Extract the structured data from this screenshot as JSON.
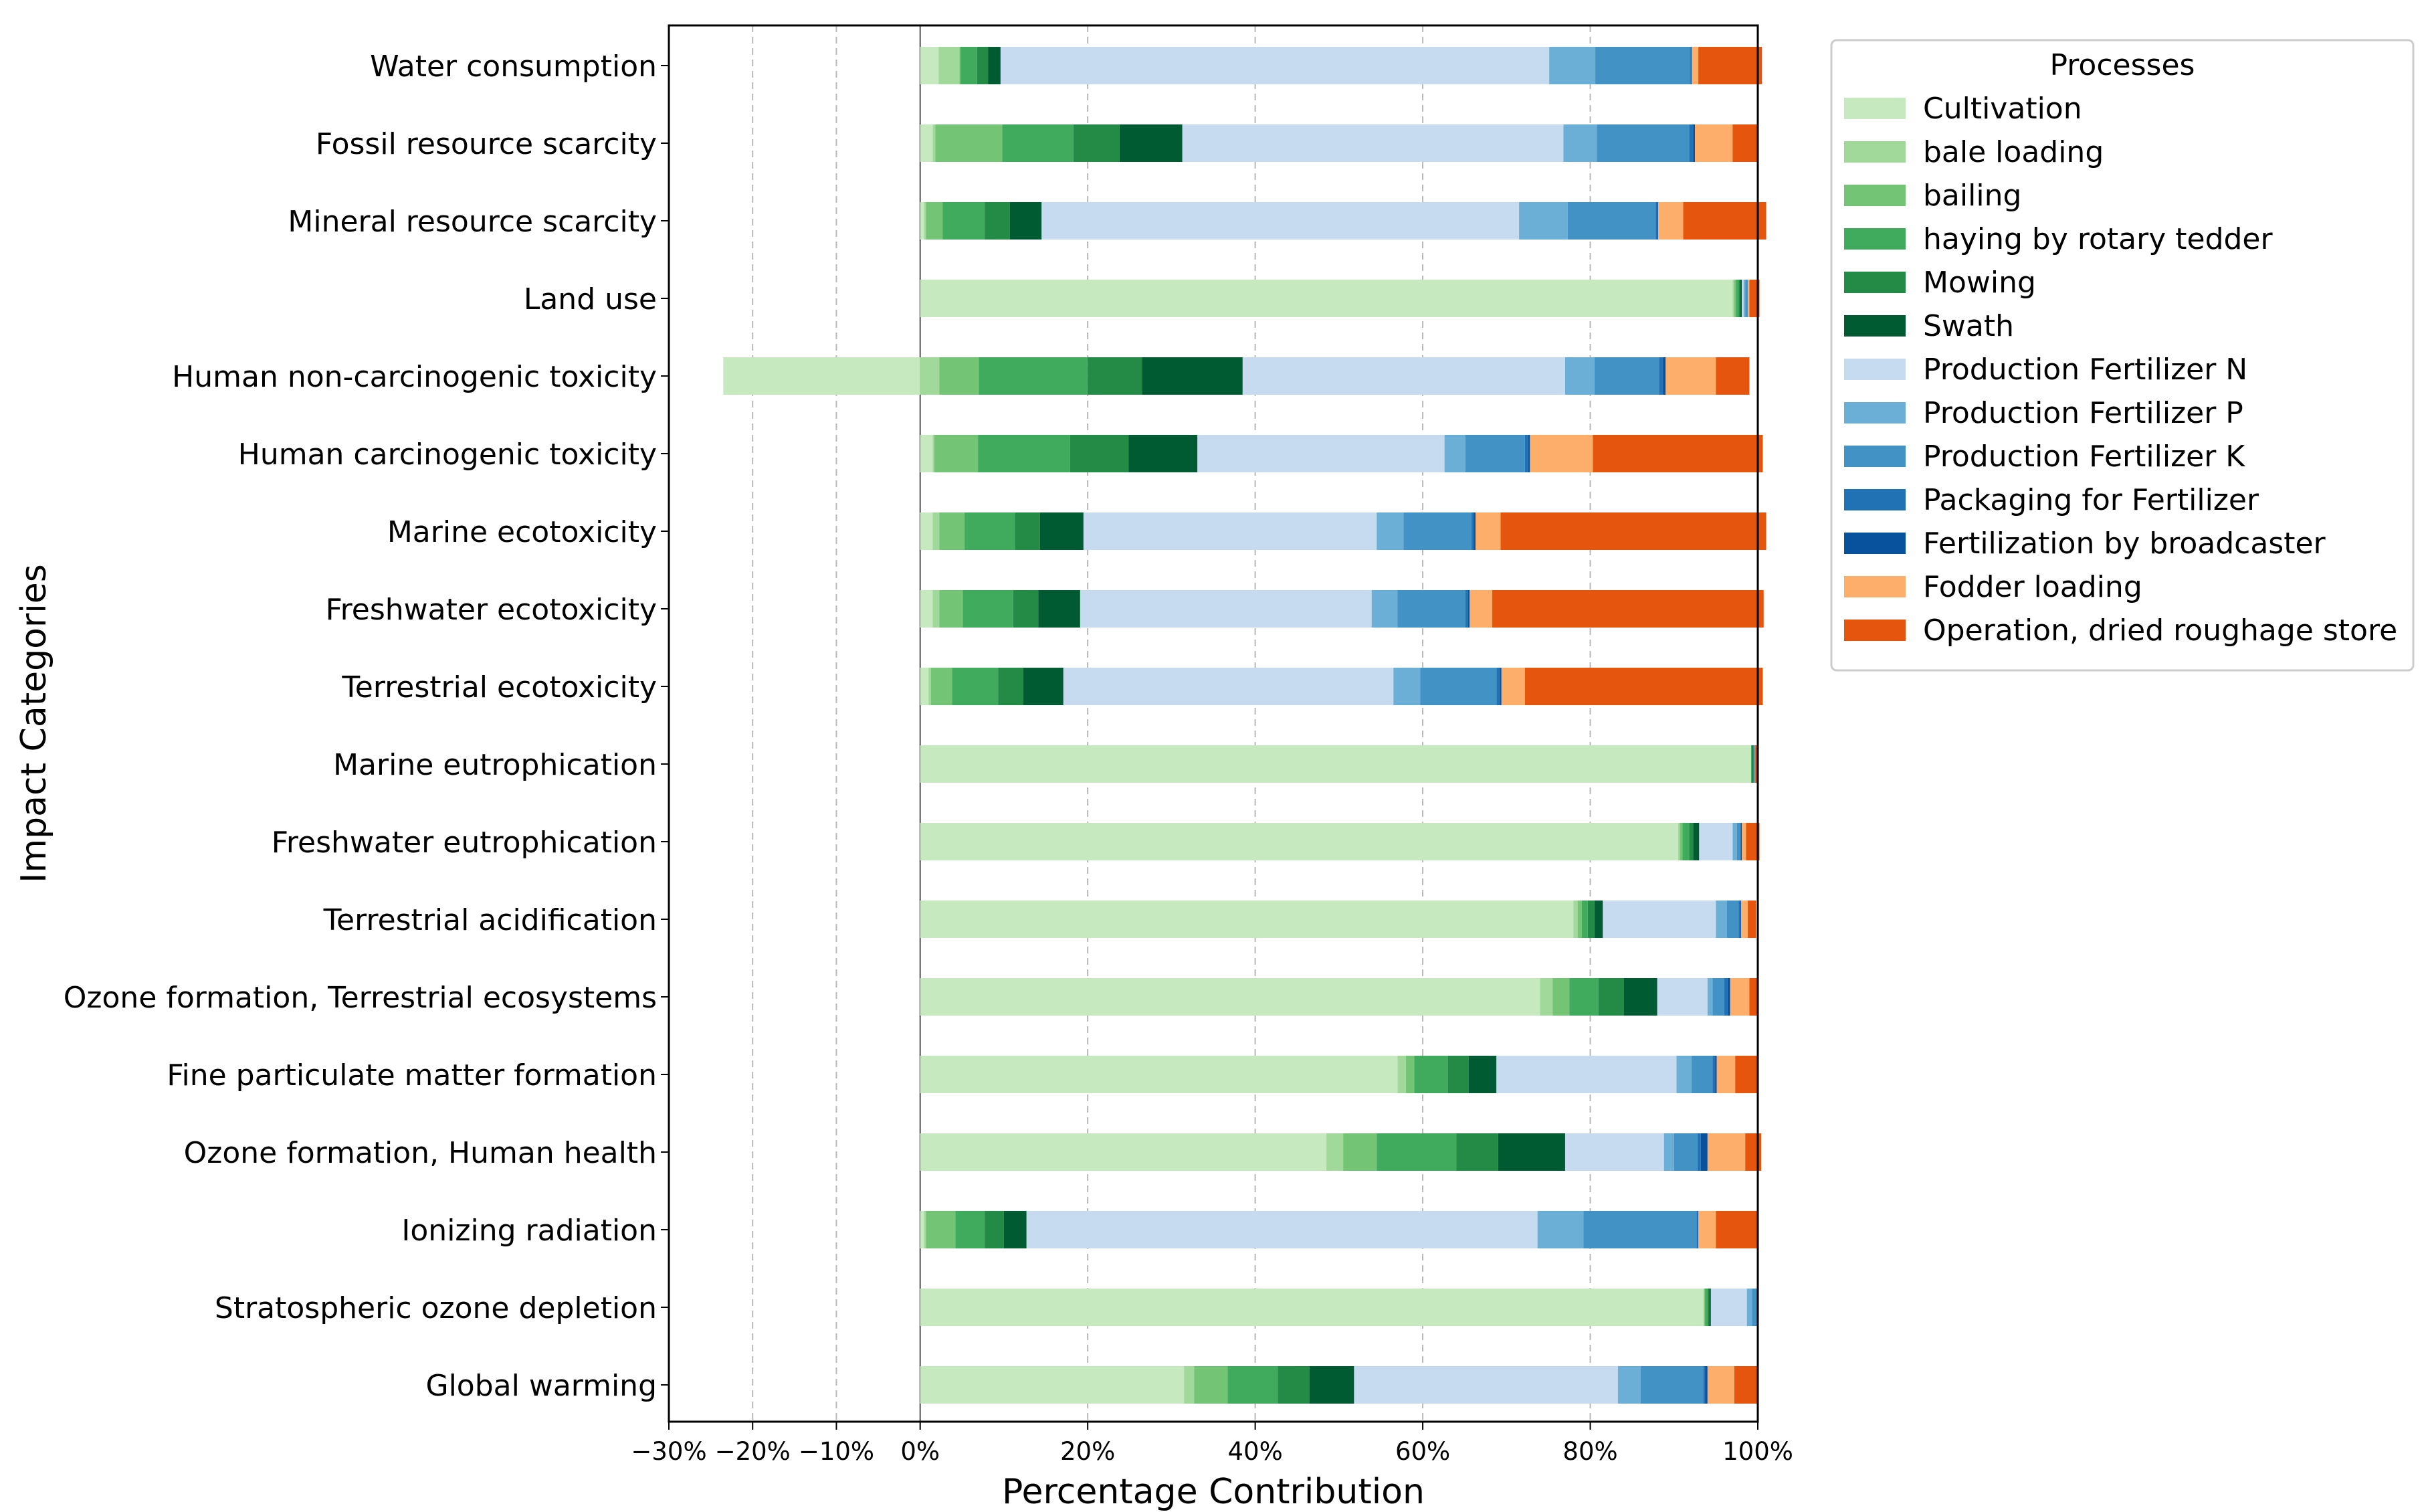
{
  "chart_data": {
    "type": "bar",
    "orientation": "horizontal",
    "stacked": true,
    "xlabel": "Percentage Contribution",
    "ylabel": "Impact Categories",
    "xlim": [
      -30,
      100
    ],
    "xticks": [
      -30,
      -20,
      -10,
      0,
      20,
      40,
      60,
      80,
      100
    ],
    "xtick_labels": [
      "−30%",
      "−20%",
      "−10%",
      "0%",
      "20%",
      "40%",
      "60%",
      "80%",
      "100%"
    ],
    "grid": "x-dashed",
    "legend_title": "Processes",
    "legend_position": "outside-right-top",
    "categories": [
      "Water consumption",
      "Fossil resource scarcity",
      "Mineral resource scarcity",
      "Land use",
      "Human non-carcinogenic toxicity",
      "Human carcinogenic toxicity",
      "Marine ecotoxicity",
      "Freshwater ecotoxicity",
      "Terrestrial ecotoxicity",
      "Marine eutrophication",
      "Freshwater eutrophication",
      "Terrestrial acidification",
      "Ozone formation, Terrestrial ecosystems",
      "Fine particulate matter formation",
      "Ozone formation, Human health",
      "Ionizing radiation",
      "Stratospheric ozone depletion",
      "Global warming"
    ],
    "series": [
      {
        "name": "Cultivation",
        "color": "#c7e9c0",
        "values": [
          2.2,
          1.5,
          0.5,
          97.0,
          -23.5,
          1.5,
          1.5,
          1.5,
          1.0,
          99.2,
          90.5,
          78.0,
          74.0,
          57.0,
          48.5,
          0.5,
          93.5,
          31.5
        ]
      },
      {
        "name": "bale loading",
        "color": "#a1d99b",
        "values": [
          2.5,
          0.3,
          0.2,
          0.2,
          2.3,
          0.2,
          0.8,
          0.8,
          0.3,
          0.0,
          0.2,
          0.5,
          1.5,
          1.0,
          2.0,
          0.2,
          0.1,
          1.2
        ]
      },
      {
        "name": "bailing",
        "color": "#74c476",
        "values": [
          0.1,
          8.0,
          2.0,
          0.2,
          4.7,
          5.2,
          3.0,
          2.8,
          2.5,
          0.0,
          0.3,
          0.5,
          2.0,
          1.0,
          4.0,
          3.5,
          0.1,
          4.0
        ]
      },
      {
        "name": "haying by rotary tedder",
        "color": "#41ab5d",
        "values": [
          2.0,
          8.5,
          5.0,
          0.3,
          13.0,
          11.0,
          6.0,
          6.0,
          5.5,
          0.1,
          0.8,
          0.7,
          3.5,
          4.0,
          9.5,
          3.5,
          0.3,
          6.0
        ]
      },
      {
        "name": "Mowing",
        "color": "#238b45",
        "values": [
          1.3,
          5.5,
          3.0,
          0.2,
          6.5,
          7.0,
          3.0,
          3.0,
          3.0,
          0.1,
          0.5,
          0.8,
          3.0,
          2.5,
          5.0,
          2.3,
          0.2,
          3.8
        ]
      },
      {
        "name": "Swath",
        "color": "#005a32",
        "values": [
          1.5,
          7.5,
          3.8,
          0.2,
          12.0,
          8.2,
          5.2,
          5.0,
          4.8,
          0.1,
          0.7,
          1.0,
          4.0,
          3.3,
          8.0,
          2.7,
          0.2,
          5.3
        ]
      },
      {
        "name": "Production Fertilizer N",
        "color": "#c6dbef",
        "values": [
          65.5,
          45.5,
          57.0,
          0.2,
          38.5,
          29.5,
          35.0,
          34.8,
          39.4,
          0.0,
          4.0,
          13.5,
          6.0,
          21.5,
          11.8,
          61.0,
          4.3,
          31.5
        ]
      },
      {
        "name": "Production Fertilizer P",
        "color": "#6baed6",
        "values": [
          5.5,
          4.0,
          5.8,
          0.2,
          3.5,
          2.5,
          3.2,
          3.1,
          3.2,
          0.1,
          0.5,
          1.3,
          0.6,
          1.8,
          1.2,
          5.5,
          0.6,
          2.7
        ]
      },
      {
        "name": "Production Fertilizer K",
        "color": "#4292c6",
        "values": [
          11.3,
          11.0,
          10.5,
          0.3,
          7.7,
          7.1,
          8.1,
          8.1,
          9.1,
          0.1,
          0.4,
          1.4,
          1.4,
          2.5,
          2.8,
          13.5,
          0.7,
          7.5
        ]
      },
      {
        "name": "Packaging for Fertilizer",
        "color": "#2171b5",
        "values": [
          0.1,
          0.5,
          0.2,
          0.0,
          0.5,
          0.4,
          0.3,
          0.3,
          0.4,
          0.0,
          0.1,
          0.2,
          0.4,
          0.3,
          0.4,
          0.1,
          0.0,
          0.2
        ]
      },
      {
        "name": "Fertilization by broadcaster",
        "color": "#08519c",
        "values": [
          0.1,
          0.2,
          0.1,
          0.0,
          0.3,
          0.2,
          0.2,
          0.2,
          0.2,
          0.0,
          0.1,
          0.1,
          0.3,
          0.2,
          0.8,
          0.1,
          0.0,
          0.3
        ]
      },
      {
        "name": "Fodder loading",
        "color": "#fdae6b",
        "values": [
          0.8,
          4.5,
          3.0,
          0.2,
          6.0,
          7.5,
          3.0,
          2.7,
          2.8,
          0.0,
          0.5,
          0.8,
          2.3,
          2.2,
          4.5,
          2.1,
          0.0,
          3.2
        ]
      },
      {
        "name": "Operation, dried roughage store",
        "color": "#e6550d",
        "values": [
          7.6,
          3.0,
          9.9,
          1.2,
          4.0,
          20.3,
          31.7,
          32.4,
          28.4,
          0.2,
          1.6,
          1.0,
          1.1,
          2.6,
          1.9,
          5.0,
          0.0,
          2.9
        ]
      }
    ]
  }
}
